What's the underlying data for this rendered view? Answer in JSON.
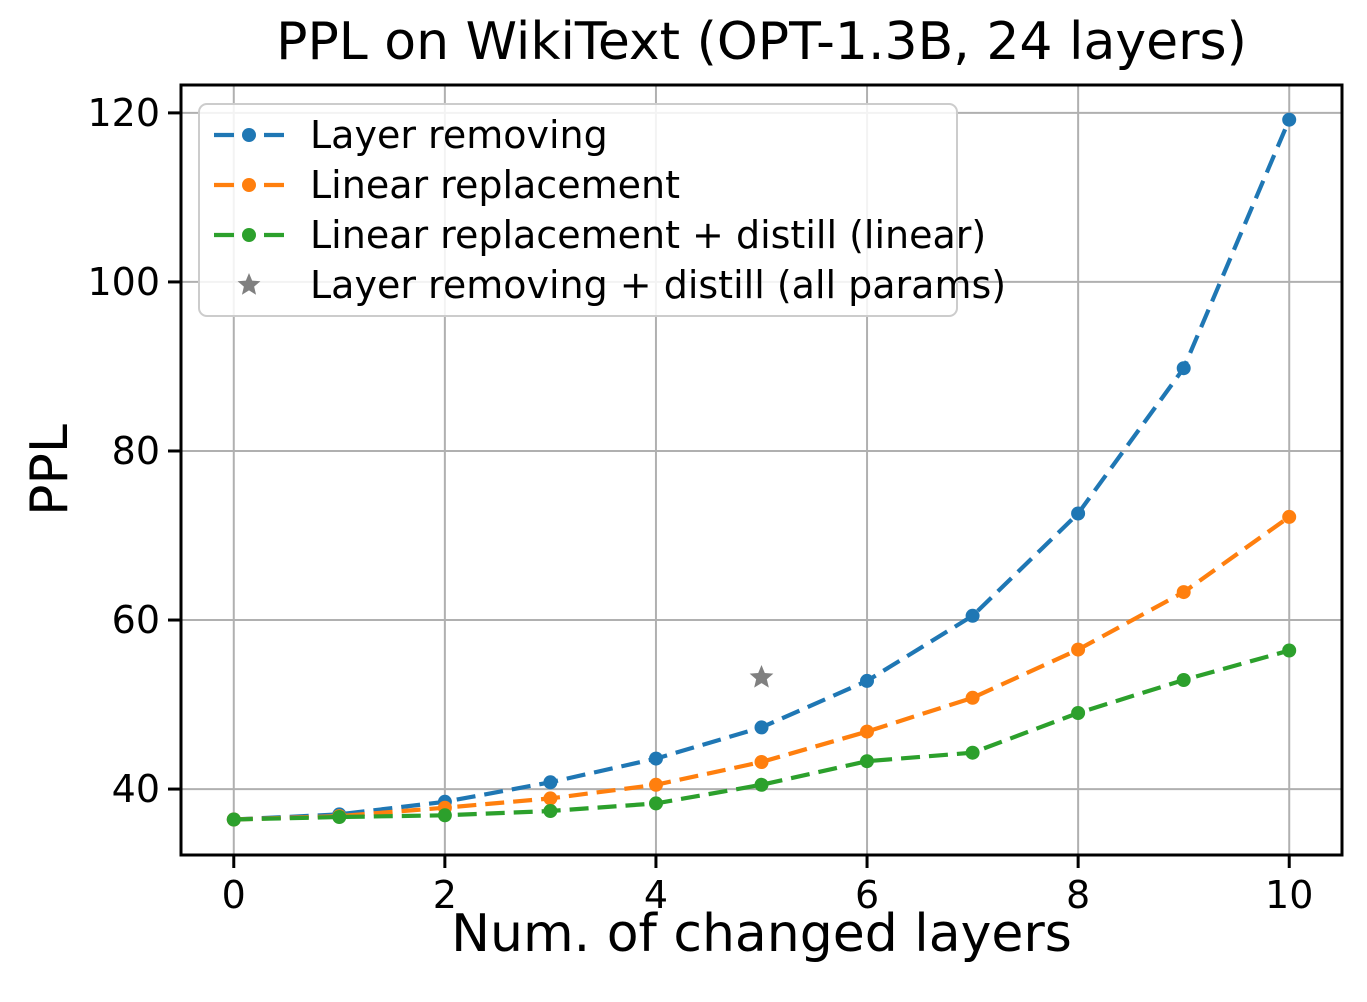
{
  "figure": {
    "title": "PPL on WikiText (OPT-1.3B, 24 layers)",
    "xlabel": "Num. of changed layers",
    "ylabel": "PPL"
  },
  "chart_data": {
    "type": "line",
    "title": "PPL on WikiText (OPT-1.3B, 24 layers)",
    "xlabel": "Num. of changed layers",
    "ylabel": "PPL",
    "x": [
      0,
      1,
      2,
      3,
      4,
      5,
      6,
      7,
      8,
      9,
      10
    ],
    "series": [
      {
        "name": "Layer removing",
        "type": "line",
        "color": "#1f77b4",
        "linestyle": "dashed",
        "marker": "circle",
        "values": [
          36.4,
          37.0,
          38.5,
          40.8,
          43.6,
          47.3,
          52.8,
          60.5,
          72.6,
          89.8,
          119.2
        ]
      },
      {
        "name": "Linear replacement",
        "type": "line",
        "color": "#ff7f0e",
        "linestyle": "dashed",
        "marker": "circle",
        "values": [
          36.4,
          36.8,
          37.8,
          38.9,
          40.5,
          43.2,
          46.8,
          50.8,
          56.5,
          63.3,
          72.2
        ]
      },
      {
        "name": "Linear replacement + distill (linear)",
        "type": "line",
        "color": "#2ca02c",
        "linestyle": "dashed",
        "marker": "circle",
        "values": [
          36.4,
          36.7,
          36.9,
          37.4,
          38.3,
          40.5,
          43.3,
          44.3,
          49.0,
          52.9,
          56.4
        ]
      },
      {
        "name": "Layer removing + distill (all params)",
        "type": "scatter",
        "color": "#808080",
        "marker": "star",
        "points": [
          {
            "x": 5,
            "y": 53.2
          }
        ]
      }
    ],
    "x_ticks": [
      0,
      2,
      4,
      6,
      8,
      10
    ],
    "y_ticks": [
      40,
      60,
      80,
      100,
      120
    ],
    "xlim": [
      -0.5,
      10.5
    ],
    "ylim": [
      32.2,
      123.3
    ],
    "grid": true,
    "legend_position": "upper left"
  },
  "style": {
    "grid_color": "#b0b0b0",
    "spine_color": "#000000",
    "tick_label_color": "#000000",
    "legend_border_color": "#cccccc",
    "background": "#ffffff"
  }
}
